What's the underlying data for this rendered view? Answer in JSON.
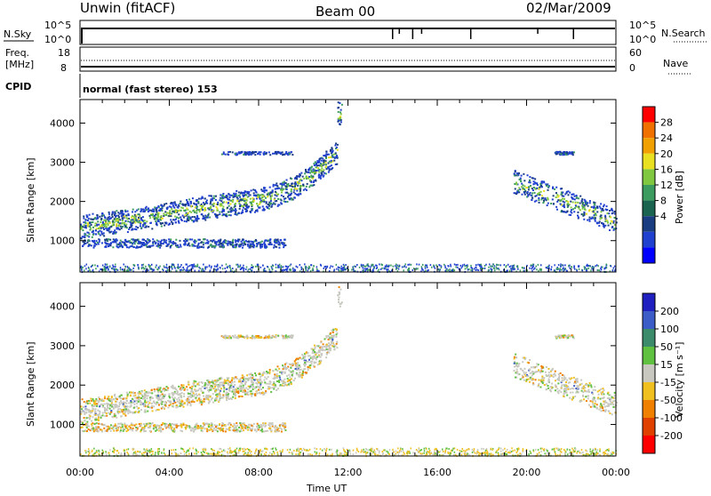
{
  "header": {
    "station": "Unwin (fitACF)",
    "beam": "Beam 00",
    "date": "02/Mar/2009"
  },
  "strip_labels": {
    "nsky": "N.Sky",
    "nsky_ticks": [
      "10^5",
      "10^0"
    ],
    "nsearch": "N.Search",
    "nsearch_ticks": [
      "10^5",
      "10^0"
    ],
    "freq_label_1": "Freq.",
    "freq_label_2": "[MHz]",
    "freq_ticks": [
      "18",
      "8"
    ],
    "nave": "Nave",
    "nave_ticks": [
      "60",
      "0"
    ],
    "cpid": "CPID",
    "cpid_text": "normal (fast stereo) 153"
  },
  "chart_data": [
    {
      "type": "heatmap",
      "name": "power",
      "xlabel": "",
      "ylabel": "Slant Range [km]",
      "y_ticks": [
        1000,
        2000,
        3000,
        4000
      ],
      "ylim": [
        200,
        4600
      ],
      "xlim_hours": [
        0,
        24
      ],
      "colorbar_label": "Power [dB]",
      "colorbar_ticks": [
        "28",
        "24",
        "20",
        "16",
        "12",
        "8",
        "4"
      ],
      "colorbar_colors": [
        "#ff0000",
        "#f07000",
        "#f0a000",
        "#e8e020",
        "#80c840",
        "#3c9c60",
        "#1a6450",
        "#1a3c80",
        "#2040d0",
        "#0000ff"
      ]
    },
    {
      "type": "heatmap",
      "name": "velocity",
      "xlabel": "Time UT",
      "ylabel": "Slant Range [km]",
      "x_ticks": [
        "00:00",
        "04:00",
        "08:00",
        "12:00",
        "16:00",
        "20:00",
        "00:00"
      ],
      "y_ticks": [
        1000,
        2000,
        3000,
        4000
      ],
      "ylim": [
        200,
        4600
      ],
      "colorbar_label": "Velocity [m s⁻¹]",
      "colorbar_ticks": [
        "200",
        "100",
        "50",
        "15",
        "-15",
        "-50",
        "-100",
        "-200"
      ],
      "colorbar_colors": [
        "#2020c0",
        "#3c5cc8",
        "#3c8c6c",
        "#60c040",
        "#c8c8c0",
        "#f0c020",
        "#f08000",
        "#e04000",
        "#ff0000"
      ]
    }
  ]
}
